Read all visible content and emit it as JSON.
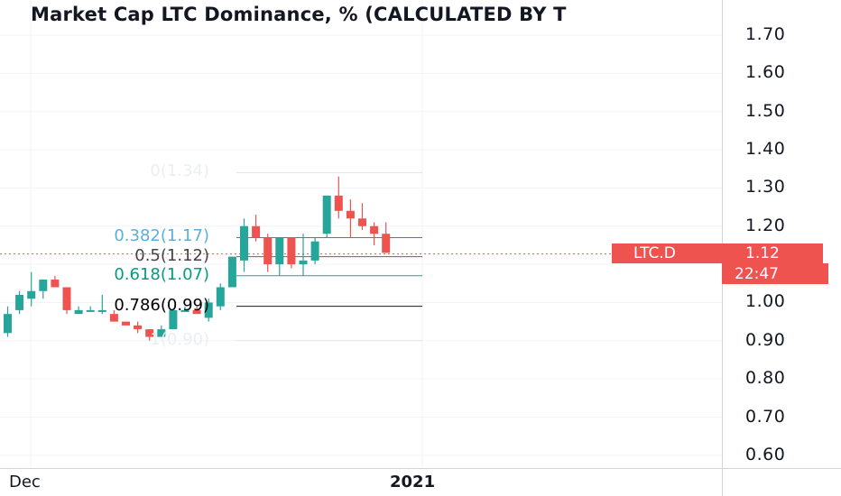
{
  "chart_data": {
    "type": "candlestick",
    "title": "Market Cap LTC Dominance, % (CALCULATED BY T",
    "ylim": [
      0.57,
      1.76
    ],
    "y_ticks": [
      "1.70",
      "1.60",
      "1.50",
      "1.40",
      "1.30",
      "1.20",
      "1.10",
      "1.00",
      "0.90",
      "0.80",
      "0.70",
      "0.60"
    ],
    "x_ticks": [
      {
        "label": "Dec",
        "bold": false
      },
      {
        "label": "2021",
        "bold": true
      }
    ],
    "candles": [
      {
        "o": 0.92,
        "h": 0.99,
        "l": 0.91,
        "c": 0.97
      },
      {
        "o": 0.98,
        "h": 1.03,
        "l": 0.97,
        "c": 1.02
      },
      {
        "o": 1.01,
        "h": 1.08,
        "l": 0.99,
        "c": 1.03
      },
      {
        "o": 1.03,
        "h": 1.06,
        "l": 1.01,
        "c": 1.06
      },
      {
        "o": 1.06,
        "h": 1.07,
        "l": 1.04,
        "c": 1.04
      },
      {
        "o": 1.04,
        "h": 1.04,
        "l": 0.97,
        "c": 0.98
      },
      {
        "o": 0.97,
        "h": 0.99,
        "l": 0.97,
        "c": 0.98
      },
      {
        "o": 0.98,
        "h": 0.99,
        "l": 0.98,
        "c": 0.98
      },
      {
        "o": 0.98,
        "h": 1.02,
        "l": 0.97,
        "c": 0.98
      },
      {
        "o": 0.97,
        "h": 0.98,
        "l": 0.95,
        "c": 0.95
      },
      {
        "o": 0.95,
        "h": 0.95,
        "l": 0.94,
        "c": 0.94
      },
      {
        "o": 0.94,
        "h": 0.95,
        "l": 0.92,
        "c": 0.93
      },
      {
        "o": 0.93,
        "h": 0.93,
        "l": 0.9,
        "c": 0.91
      },
      {
        "o": 0.91,
        "h": 0.94,
        "l": 0.91,
        "c": 0.93
      },
      {
        "o": 0.93,
        "h": 0.98,
        "l": 0.93,
        "c": 0.98
      },
      {
        "o": 0.98,
        "h": 0.99,
        "l": 0.98,
        "c": 0.98
      },
      {
        "o": 0.98,
        "h": 0.99,
        "l": 0.97,
        "c": 0.97
      },
      {
        "o": 0.96,
        "h": 1.01,
        "l": 0.95,
        "c": 1.0
      },
      {
        "o": 0.99,
        "h": 1.05,
        "l": 0.98,
        "c": 1.04
      },
      {
        "o": 1.04,
        "h": 1.12,
        "l": 1.04,
        "c": 1.12
      },
      {
        "o": 1.11,
        "h": 1.22,
        "l": 1.08,
        "c": 1.2
      },
      {
        "o": 1.2,
        "h": 1.23,
        "l": 1.16,
        "c": 1.17
      },
      {
        "o": 1.17,
        "h": 1.18,
        "l": 1.08,
        "c": 1.1
      },
      {
        "o": 1.1,
        "h": 1.17,
        "l": 1.07,
        "c": 1.17
      },
      {
        "o": 1.17,
        "h": 1.17,
        "l": 1.09,
        "c": 1.1
      },
      {
        "o": 1.1,
        "h": 1.18,
        "l": 1.07,
        "c": 1.11
      },
      {
        "o": 1.11,
        "h": 1.17,
        "l": 1.1,
        "c": 1.16
      },
      {
        "o": 1.18,
        "h": 1.28,
        "l": 1.17,
        "c": 1.28
      },
      {
        "o": 1.28,
        "h": 1.33,
        "l": 1.22,
        "c": 1.24
      },
      {
        "o": 1.24,
        "h": 1.27,
        "l": 1.17,
        "c": 1.22
      },
      {
        "o": 1.22,
        "h": 1.26,
        "l": 1.19,
        "c": 1.2
      },
      {
        "o": 1.2,
        "h": 1.21,
        "l": 1.15,
        "c": 1.18
      },
      {
        "o": 1.18,
        "h": 1.21,
        "l": 1.13,
        "c": 1.13
      }
    ],
    "fib_levels": [
      {
        "label": "0(1.34)",
        "value": 1.34,
        "label_color": "#eceef2",
        "line_color": "#e0e3eb"
      },
      {
        "label": "0.382(1.17)",
        "value": 1.17,
        "label_color": "#5aaee0",
        "line_color": "#2962ff"
      },
      {
        "label": "0.5(1.12)",
        "value": 1.12,
        "label_color": "#444444",
        "line_color": "#555555"
      },
      {
        "label": "0.618(1.07)",
        "value": 1.07,
        "label_color": "#089981",
        "line_color": "#089981"
      },
      {
        "label": "0.786(0.99)",
        "value": 0.99,
        "label_color": "#000000",
        "line_color": "#000000"
      },
      {
        "label": "1(0.90)",
        "value": 0.9,
        "label_color": "#eceef2",
        "line_color": "#e0e3eb"
      }
    ],
    "last_price": {
      "symbol": "LTC.D",
      "value": "1.12",
      "countdown": "22:47"
    },
    "colors": {
      "up": "#26a69a",
      "down": "#ef5350",
      "grid": "#f0f3fa",
      "text": "#131722"
    }
  }
}
